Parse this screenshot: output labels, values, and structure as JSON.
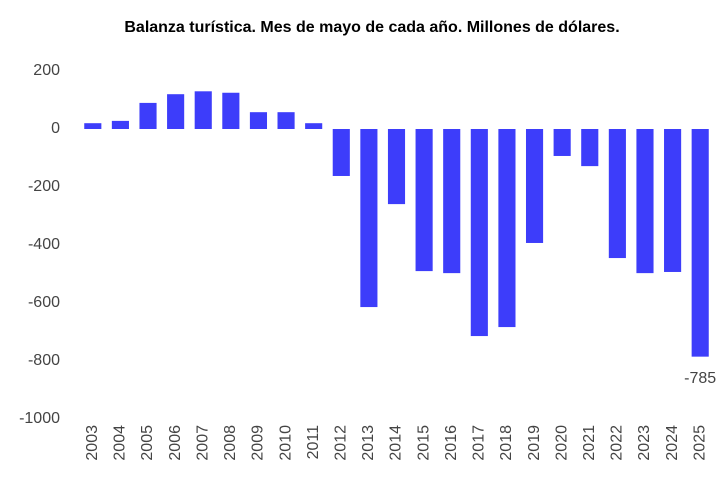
{
  "chart_data": {
    "type": "bar",
    "title": "Balanza turística. Mes de mayo de cada año. Millones de dólares.",
    "categories": [
      "2003",
      "2004",
      "2005",
      "2006",
      "2007",
      "2008",
      "2009",
      "2010",
      "2011",
      "2012",
      "2013",
      "2014",
      "2015",
      "2016",
      "2017",
      "2018",
      "2019",
      "2020",
      "2021",
      "2022",
      "2023",
      "2024",
      "2025"
    ],
    "values": [
      20,
      28,
      90,
      120,
      130,
      125,
      58,
      58,
      20,
      -162,
      -614,
      -259,
      -490,
      -497,
      -714,
      -683,
      -393,
      -93,
      -128,
      -445,
      -497,
      -493,
      -785
    ],
    "color": "#3d3dfa",
    "ylim": [
      -1000,
      200
    ],
    "yticks": [
      -1000,
      -800,
      -600,
      -400,
      -200,
      0,
      200
    ],
    "grid": false,
    "label_last": true
  }
}
